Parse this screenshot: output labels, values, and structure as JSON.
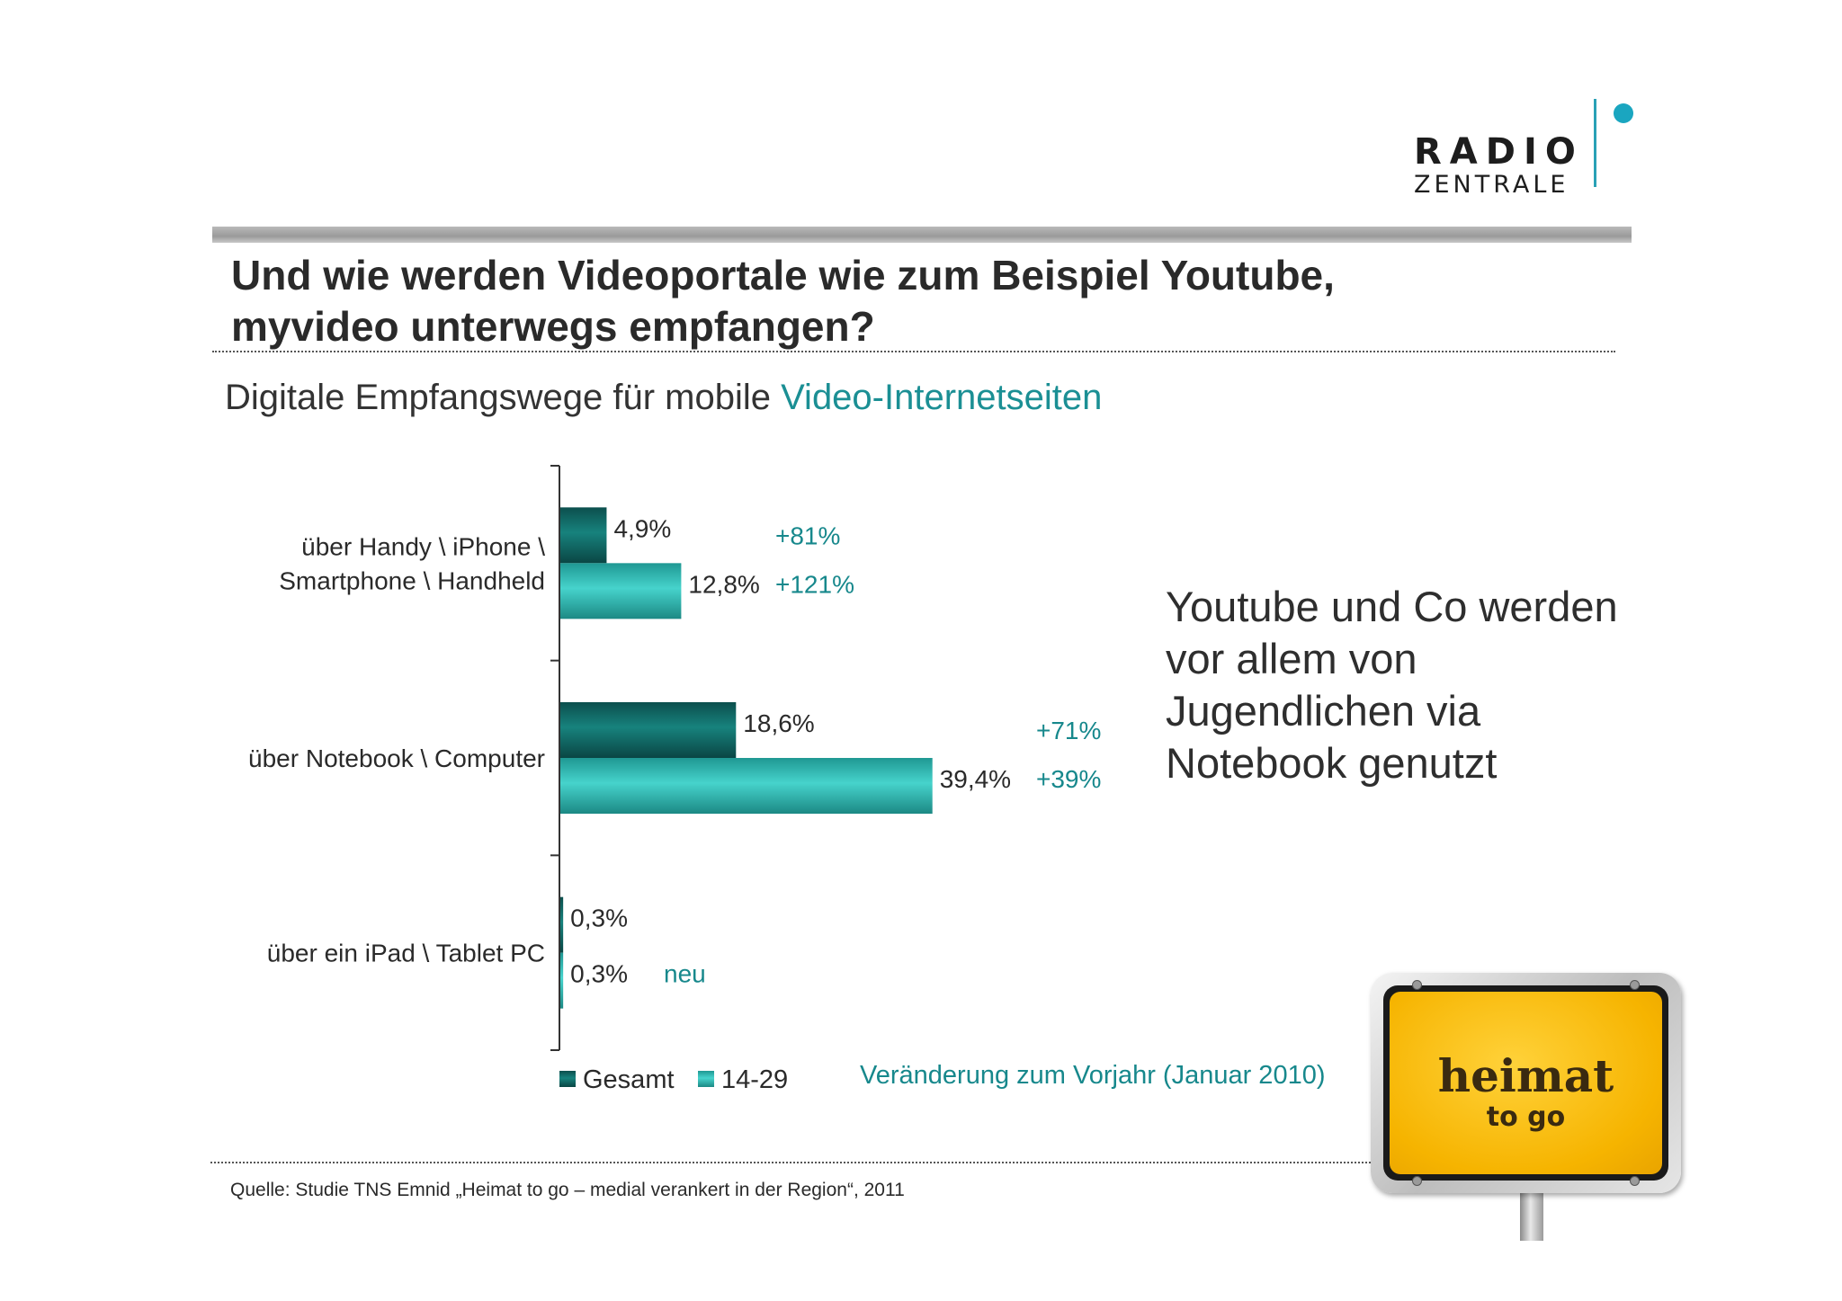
{
  "logo": {
    "line1": "RADIO",
    "line2": "ZENTRALE"
  },
  "title": {
    "line1": "Und wie werden Videoportale wie zum Beispiel Youtube,",
    "line2": "myvideo unterwegs empfangen?"
  },
  "subtitle": {
    "prefix": "Digitale Empfangswege für mobile ",
    "highlight": "Video-Internetseiten"
  },
  "colors": {
    "gesamt": "#0f6b68",
    "age_14_29": "#2fb9b4",
    "accent": "#17888c"
  },
  "chart_data": {
    "type": "bar",
    "orientation": "horizontal",
    "categories": [
      [
        "über Handy \\ iPhone \\",
        "Smartphone \\ Handheld"
      ],
      [
        "über Notebook \\ Computer"
      ],
      [
        "über ein iPad \\ Tablet PC"
      ]
    ],
    "series": [
      {
        "name": "Gesamt",
        "values": [
          4.9,
          18.6,
          0.3
        ],
        "labels": [
          "4,9%",
          "18,6%",
          "0,3%"
        ]
      },
      {
        "name": "14-29",
        "values": [
          12.8,
          39.4,
          0.3
        ],
        "labels": [
          "12,8%",
          "39,4%",
          "0,3%"
        ]
      }
    ],
    "changes": [
      [
        "+81%",
        "+121%"
      ],
      [
        "+71%",
        "+39%"
      ],
      [
        "",
        "neu"
      ]
    ],
    "change_note": "Veränderung zum Vorjahr (Januar 2010)",
    "xlim": [
      0,
      45
    ],
    "legend": "bottom"
  },
  "callout": [
    "Youtube und Co werden",
    "vor allem von",
    "Jugendlichen via",
    "Notebook genutzt"
  ],
  "source": "Quelle: Studie TNS Emnid „Heimat to go  – medial verankert in der Region“, 2011",
  "sign": {
    "line1": "heimat",
    "line2": "to go"
  }
}
